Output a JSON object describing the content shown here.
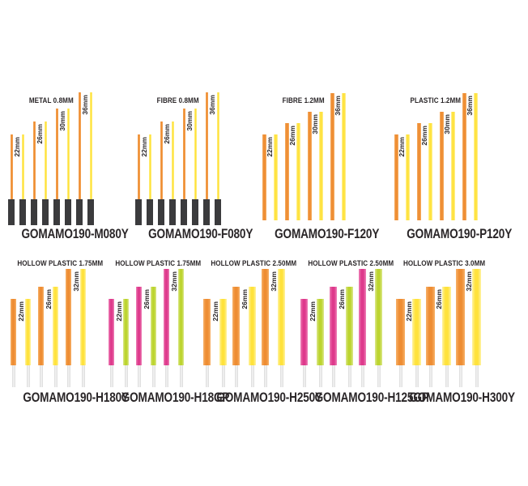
{
  "page": {
    "background": "#ffffff",
    "text_color": "#2a2628"
  },
  "palette": {
    "orange": {
      "center": "#ee8d33",
      "edge": "#f7b168"
    },
    "yellow": {
      "center": "#ffe23c",
      "edge": "#fff3a1"
    },
    "pink": {
      "center": "#de3a8c",
      "edge": "#ee82b8"
    },
    "green": {
      "center": "#bcd42f",
      "edge": "#dce88e"
    },
    "metal_tip": "#3b3b3d",
    "pin_center": "#f5f5f5",
    "pin_edge": "#d9d9d9"
  },
  "chart_data": {
    "type": "bar",
    "unit": "mm",
    "description": "Product length chart: stems shown as paired color bars per available length",
    "groups": [
      {
        "title": "METAL 0.8MM",
        "code": "GOMAMO190-M080Y",
        "material": "METAL",
        "diameter_mm": 0.8,
        "style": "dark-tip",
        "sizes_mm": [
          22,
          26,
          30,
          36
        ],
        "size_labels": [
          "22mm",
          "26mm",
          "30mm",
          "36mm"
        ],
        "pair_colors": [
          "orange",
          "yellow"
        ]
      },
      {
        "title": "FIBRE 0.8MM",
        "code": "GOMAMO190-F080Y",
        "material": "FIBRE",
        "diameter_mm": 0.8,
        "style": "dark-tip",
        "sizes_mm": [
          22,
          26,
          30,
          36
        ],
        "size_labels": [
          "22mm",
          "26mm",
          "30mm",
          "36mm"
        ],
        "pair_colors": [
          "orange",
          "yellow"
        ]
      },
      {
        "title": "FIBRE 1.2MM",
        "code": "GOMAMO190-F120Y",
        "material": "FIBRE",
        "diameter_mm": 1.2,
        "style": "solid",
        "sizes_mm": [
          22,
          26,
          30,
          36
        ],
        "size_labels": [
          "22mm",
          "26mm",
          "30mm",
          "36mm"
        ],
        "pair_colors": [
          "orange",
          "yellow"
        ]
      },
      {
        "title": "PLASTIC 1.2MM",
        "code": "GOMAMO190-P120Y",
        "material": "PLASTIC",
        "diameter_mm": 1.2,
        "style": "solid",
        "sizes_mm": [
          22,
          26,
          30,
          36
        ],
        "size_labels": [
          "22mm",
          "26mm",
          "30mm",
          "36mm"
        ],
        "pair_colors": [
          "orange",
          "yellow"
        ]
      },
      {
        "title": "HOLLOW PLASTIC 1.75MM",
        "code": "GOMAMO190-H180Y",
        "material": "HOLLOW PLASTIC",
        "diameter_mm": 1.75,
        "style": "hollow-pin",
        "sizes_mm": [
          22,
          26,
          32
        ],
        "size_labels": [
          "22mm",
          "26mm",
          "32mm"
        ],
        "pair_colors": [
          "orange",
          "yellow"
        ]
      },
      {
        "title": "HOLLOW PLASTIC 1.75MM",
        "code": "GOMAMO190-H18GP",
        "material": "HOLLOW PLASTIC",
        "diameter_mm": 1.75,
        "style": "hollow-pin",
        "sizes_mm": [
          22,
          26,
          32
        ],
        "size_labels": [
          "22mm",
          "26mm",
          "32mm"
        ],
        "pair_colors": [
          "pink",
          "green"
        ]
      },
      {
        "title": "HOLLOW PLASTIC 2.50MM",
        "code": "GOMAMO190-H250Y",
        "material": "HOLLOW PLASTIC",
        "diameter_mm": 2.5,
        "style": "hollow-pin",
        "sizes_mm": [
          22,
          26,
          32
        ],
        "size_labels": [
          "22mm",
          "26mm",
          "32mm"
        ],
        "pair_colors": [
          "orange",
          "yellow"
        ]
      },
      {
        "title": "HOLLOW PLASTIC 2.50MM",
        "code": "GOMAMO190-H125GP",
        "material": "HOLLOW PLASTIC",
        "diameter_mm": 2.5,
        "style": "hollow-pin",
        "sizes_mm": [
          22,
          26,
          32
        ],
        "size_labels": [
          "22mm",
          "26mm",
          "32mm"
        ],
        "pair_colors": [
          "pink",
          "green"
        ]
      },
      {
        "title": "HOLLOW PLASTIC 3.0MM",
        "code": "GOMAMO190-H300Y",
        "material": "HOLLOW PLASTIC",
        "diameter_mm": 3.0,
        "style": "hollow-pin",
        "sizes_mm": [
          22,
          26,
          32
        ],
        "size_labels": [
          "22mm",
          "26mm",
          "32mm"
        ],
        "pair_colors": [
          "orange",
          "yellow"
        ]
      }
    ]
  }
}
